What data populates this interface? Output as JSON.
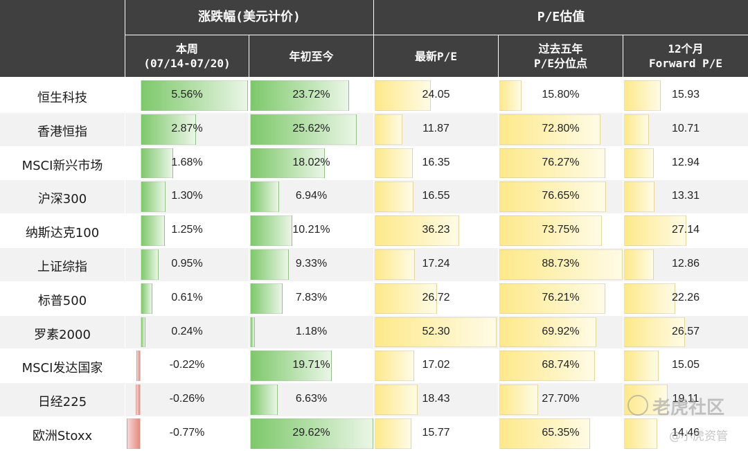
{
  "colors": {
    "header_bg": "#404040",
    "header_text": "#ffffff",
    "green": "#7dc86a",
    "red": "#e6897f",
    "yellow": "#fde98a",
    "stripe": "#f2f2f2"
  },
  "headers": {
    "group1": "涨跌幅(美元计价)",
    "group2": "P/E估值",
    "week": "本周\n(07/14-07/20)",
    "ytd": "年初至今",
    "pe_latest": "最新P/E",
    "pe_pct": "过去五年\nP/E分位点",
    "pe_fwd": "12个月\nForward P/E"
  },
  "watermark": {
    "brand": "老虎社区",
    "author": "@小虎资管"
  },
  "chart_data": {
    "type": "table",
    "columns": [
      "本周(07/14-07/20)",
      "年初至今",
      "最新P/E",
      "过去五年P/E分位点",
      "12个月Forward P/E"
    ],
    "rows": [
      {
        "name": "恒生科技",
        "week": 5.56,
        "ytd": 23.72,
        "pe": 24.05,
        "pct": 15.8,
        "fwd": 15.93
      },
      {
        "name": "香港恒指",
        "week": 2.87,
        "ytd": 25.62,
        "pe": 11.87,
        "pct": 72.8,
        "fwd": 10.71
      },
      {
        "name": "MSCI新兴市场",
        "week": 1.68,
        "ytd": 18.02,
        "pe": 16.35,
        "pct": 76.27,
        "fwd": 12.94
      },
      {
        "name": "沪深300",
        "week": 1.3,
        "ytd": 6.94,
        "pe": 16.55,
        "pct": 76.65,
        "fwd": 13.31
      },
      {
        "name": "纳斯达克100",
        "week": 1.25,
        "ytd": 10.21,
        "pe": 36.23,
        "pct": 73.75,
        "fwd": 27.14
      },
      {
        "name": "上证综指",
        "week": 0.95,
        "ytd": 9.33,
        "pe": 17.24,
        "pct": 88.73,
        "fwd": 12.86
      },
      {
        "name": "标普500",
        "week": 0.61,
        "ytd": 7.83,
        "pe": 26.72,
        "pct": 76.21,
        "fwd": 22.26
      },
      {
        "name": "罗素2000",
        "week": 0.24,
        "ytd": 1.18,
        "pe": 52.3,
        "pct": 69.92,
        "fwd": 26.57
      },
      {
        "name": "MSCI发达国家",
        "week": -0.22,
        "ytd": 19.71,
        "pe": 17.02,
        "pct": 68.74,
        "fwd": 15.05
      },
      {
        "name": "日经225",
        "week": -0.26,
        "ytd": 6.63,
        "pe": 18.43,
        "pct": 27.7,
        "fwd": 19.11
      },
      {
        "name": "欧洲Stoxx",
        "week": -0.77,
        "ytd": 29.62,
        "pe": 15.77,
        "pct": 65.35,
        "fwd": 14.46
      }
    ],
    "bar_scale": {
      "week_max": 5.56,
      "ytd_max": 29.62,
      "pe_max": 52.3,
      "pct_max": 88.73,
      "fwd_max": 27.14
    }
  }
}
